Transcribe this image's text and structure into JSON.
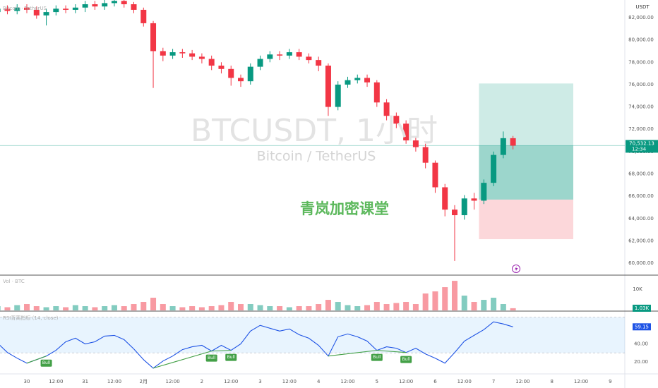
{
  "chart_data": [
    {
      "type": "candlestick",
      "legend_text": "Bitcoin · TetherUS",
      "watermark": "BTCUSDT, 1小时",
      "watermark_sub": "Bitcoin / TetherUS",
      "annotation": "青岚加密课堂",
      "currency": "USDT",
      "up_color": "#089981",
      "down_color": "#f23645",
      "open": [
        82500,
        82800,
        82600,
        82900,
        82700,
        82200,
        82500,
        82800,
        82700,
        82900,
        83200,
        83000,
        83300,
        83500,
        83200,
        82700,
        81500,
        79000,
        78600,
        78900,
        78800,
        78500,
        78300,
        77700,
        77400,
        76600,
        76300,
        77600,
        78300,
        78700,
        78600,
        78900,
        78500,
        78200,
        77700,
        74000,
        76000,
        76400,
        76600,
        76200,
        74400,
        73200,
        72500,
        71000,
        70400,
        69000,
        66800,
        64800,
        64300,
        65800,
        65600,
        67200,
        69700,
        71200
      ],
      "high": [
        83100,
        83100,
        83200,
        83200,
        83000,
        82800,
        83100,
        83100,
        83200,
        83500,
        83500,
        83600,
        83800,
        83800,
        83400,
        82900,
        81700,
        79300,
        79200,
        79200,
        79100,
        78800,
        78600,
        78000,
        77700,
        76900,
        77900,
        78600,
        79000,
        79000,
        79200,
        79200,
        78800,
        78500,
        77900,
        76300,
        76700,
        76900,
        76900,
        76400,
        74700,
        73500,
        72800,
        71300,
        70700,
        69200,
        67100,
        65200,
        66100,
        66300,
        67500,
        70000,
        71800,
        71400
      ],
      "low": [
        82200,
        82300,
        82300,
        82400,
        81900,
        81300,
        82200,
        82400,
        82400,
        82500,
        82700,
        82700,
        83000,
        82900,
        82400,
        81200,
        75700,
        78100,
        78300,
        78400,
        78200,
        77900,
        77300,
        77000,
        75900,
        75800,
        76000,
        77300,
        78000,
        78200,
        78300,
        78200,
        77900,
        77200,
        73200,
        73700,
        75700,
        76100,
        75800,
        74000,
        72800,
        72100,
        70700,
        70000,
        68500,
        66300,
        64200,
        60200,
        63900,
        64800,
        65300,
        66900,
        69400,
        70200
      ],
      "close": [
        82800,
        82600,
        82900,
        82700,
        82200,
        82500,
        82800,
        82700,
        82900,
        83200,
        83000,
        83300,
        83500,
        83200,
        82700,
        81500,
        79000,
        78600,
        78900,
        78800,
        78500,
        78300,
        77700,
        77400,
        76600,
        76300,
        77600,
        78300,
        78700,
        78600,
        78900,
        78500,
        78200,
        77700,
        74000,
        76000,
        76400,
        76600,
        76200,
        74400,
        73200,
        72500,
        71000,
        70400,
        69000,
        66800,
        64800,
        64300,
        65800,
        65600,
        67200,
        69700,
        71200,
        70532.13
      ],
      "last_label": "70,532.13",
      "countdown": "12:34",
      "position": {
        "take_profit": 76100,
        "entry": 65700,
        "stop_loss": 62150,
        "from": 49.5,
        "to": 59.2
      },
      "xlim": [
        0.24,
        64.5
      ],
      "ylim": [
        58930,
        83580
      ],
      "yticks": [
        {
          "value": 60000,
          "label": "60,000.00"
        },
        {
          "value": 62000,
          "label": "62,000.00"
        },
        {
          "value": 64000,
          "label": "64,000.00"
        },
        {
          "value": 66000,
          "label": "66,000.00"
        },
        {
          "value": 68000,
          "label": "68,000.00"
        },
        {
          "value": 70000,
          "label": "70,000.00"
        },
        {
          "value": 72000,
          "label": "72,000.00"
        },
        {
          "value": 74000,
          "label": "74,000.00"
        },
        {
          "value": 76000,
          "label": "76,000.00"
        },
        {
          "value": 78000,
          "label": "78,000.00"
        },
        {
          "value": 80000,
          "label": "80,000.00"
        },
        {
          "value": 82000,
          "label": "82,000.00"
        }
      ],
      "xticks": [
        {
          "value": 3,
          "label": "30"
        },
        {
          "value": 6,
          "label": "12:00"
        },
        {
          "value": 9,
          "label": "31"
        },
        {
          "value": 12,
          "label": "12:00"
        },
        {
          "value": 15,
          "label": "2月"
        },
        {
          "value": 18,
          "label": "12:00"
        },
        {
          "value": 21,
          "label": "2"
        },
        {
          "value": 24,
          "label": "12:00"
        },
        {
          "value": 27,
          "label": "3"
        },
        {
          "value": 30,
          "label": "12:00"
        },
        {
          "value": 33,
          "label": "4"
        },
        {
          "value": 36,
          "label": "12:00"
        },
        {
          "value": 39,
          "label": "5"
        },
        {
          "value": 42,
          "label": "12:00"
        },
        {
          "value": 45,
          "label": "6"
        },
        {
          "value": 48,
          "label": "12:00"
        },
        {
          "value": 51,
          "label": "7"
        },
        {
          "value": 54,
          "label": "12:00"
        },
        {
          "value": 57,
          "label": "8"
        },
        {
          "value": 60,
          "label": "12:00"
        },
        {
          "value": 63,
          "label": "9"
        }
      ]
    },
    {
      "type": "bar",
      "title": "Vol · BTC",
      "values": [
        2000,
        1500,
        2500,
        3000,
        2000,
        1500,
        2000,
        1500,
        2500,
        2000,
        1500,
        2000,
        2500,
        2000,
        3000,
        4000,
        6000,
        3000,
        2000,
        1500,
        2000,
        1500,
        2000,
        2500,
        4000,
        3000,
        3000,
        2500,
        2000,
        2000,
        1500,
        2000,
        2000,
        3000,
        5000,
        4000,
        2500,
        2000,
        2500,
        4000,
        3000,
        3500,
        4000,
        3000,
        8000,
        9000,
        11000,
        14000,
        7000,
        4000,
        5000,
        6000,
        3000,
        1030
      ],
      "last_label": "1.03K",
      "ylim": [
        0,
        16700
      ],
      "yticks": [
        {
          "value": 10000,
          "label": "10K"
        }
      ]
    },
    {
      "type": "line",
      "title": "RSI背离指标 (14, close)",
      "color": "#1e53e5",
      "values": [
        40.8,
        30.4,
        24,
        18.4,
        22.4,
        26.4,
        32.8,
        42.4,
        46.4,
        40,
        42.4,
        48.8,
        49.6,
        44.8,
        34.4,
        22.4,
        12.8,
        20.8,
        26.4,
        33.6,
        36.8,
        38.4,
        32,
        38.4,
        32.8,
        40,
        54.4,
        60.8,
        57.6,
        54.4,
        56.8,
        50.4,
        46.4,
        38.4,
        26.4,
        48,
        51.2,
        48,
        43.2,
        32.8,
        36.8,
        35.2,
        30.4,
        35.2,
        28.8,
        24,
        18.4,
        30.4,
        43.2,
        49.6,
        56,
        64.8,
        62.4,
        59.15
      ],
      "band": [
        30,
        70
      ],
      "ylim": [
        6.4,
        76
      ],
      "yticks": [
        {
          "value": 40,
          "label": "40.00"
        },
        {
          "value": 20,
          "label": "20.00"
        }
      ],
      "divergences": [
        {
          "from": 3,
          "to": 5,
          "label": "Bull"
        },
        {
          "from": 16,
          "to": 22,
          "label": "Bull"
        },
        {
          "from": 22,
          "to": 24,
          "label": "Bull"
        },
        {
          "from": 34,
          "to": 39,
          "label": "Bull"
        },
        {
          "from": 39,
          "to": 42,
          "label": "Bull"
        }
      ],
      "divergence_color": "#43a047"
    }
  ]
}
